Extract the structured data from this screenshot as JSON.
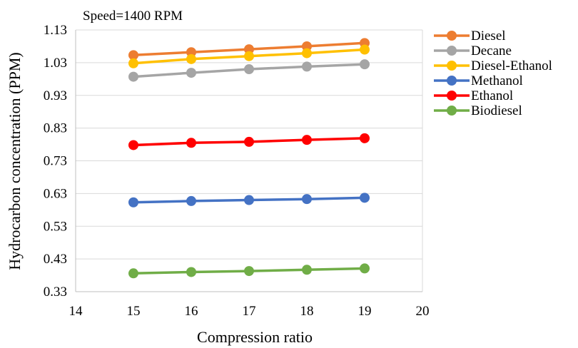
{
  "chart_data": {
    "type": "line",
    "title": "Speed=1400 RPM",
    "xlabel": "Compression ratio",
    "ylabel": "Hydrocarbon concentration (PPM)",
    "xlim": [
      14,
      20
    ],
    "ylim": [
      0.33,
      1.13
    ],
    "xticks": [
      14,
      15,
      16,
      17,
      18,
      19,
      20
    ],
    "yticks": [
      "0.33",
      "0.43",
      "0.53",
      "0.63",
      "0.73",
      "0.83",
      "0.93",
      "1.03",
      "1.13"
    ],
    "grid": "horizontal",
    "legend": "right",
    "x": [
      15,
      16,
      17,
      18,
      19
    ],
    "series": [
      {
        "name": "Diesel",
        "color": "#ED7D31",
        "values": [
          1.053,
          1.062,
          1.071,
          1.08,
          1.09
        ]
      },
      {
        "name": "Decane",
        "color": "#A5A5A5",
        "values": [
          0.987,
          0.999,
          1.01,
          1.018,
          1.025
        ]
      },
      {
        "name": "Diesel-Ethanol",
        "color": "#FFC000",
        "values": [
          1.028,
          1.041,
          1.05,
          1.059,
          1.07
        ]
      },
      {
        "name": "Methanol",
        "color": "#4472C4",
        "values": [
          0.603,
          0.607,
          0.61,
          0.613,
          0.617
        ]
      },
      {
        "name": "Ethanol",
        "color": "#FF0000",
        "values": [
          0.778,
          0.785,
          0.788,
          0.794,
          0.799
        ]
      },
      {
        "name": "Biodiesel",
        "color": "#70AD47",
        "values": [
          0.386,
          0.39,
          0.393,
          0.397,
          0.401
        ]
      }
    ]
  }
}
